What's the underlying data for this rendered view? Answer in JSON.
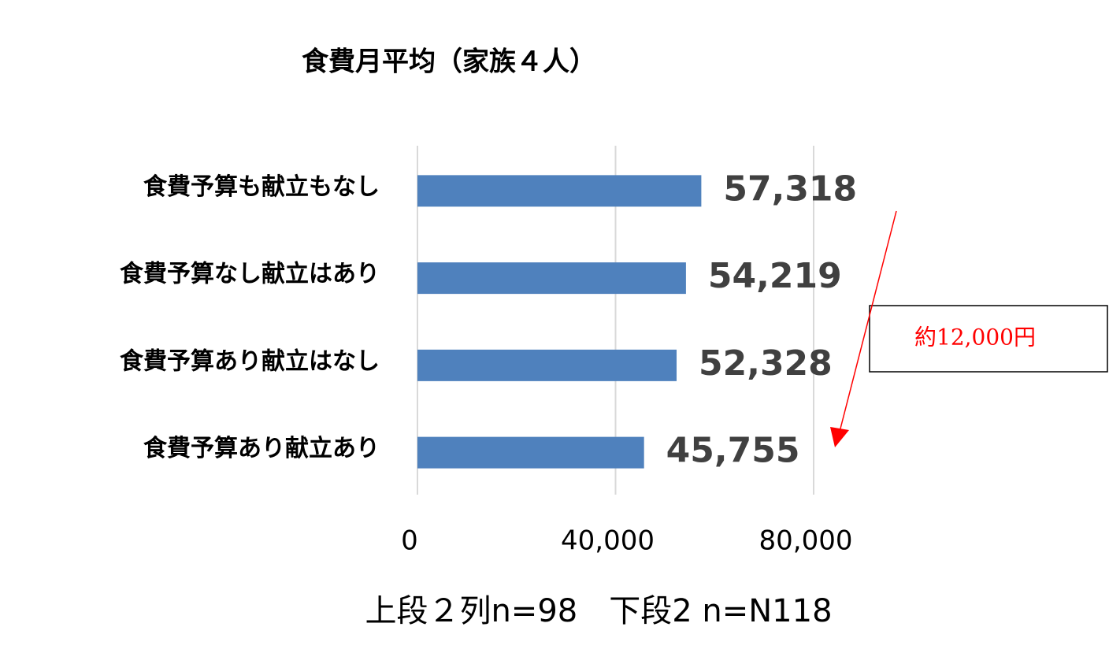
{
  "chart_data": {
    "type": "bar",
    "orientation": "horizontal",
    "title": "食費月平均（家族４人）",
    "categories": [
      "食費予算も献立もなし",
      "食費予算なし献立はあり",
      "食費予算あり献立はなし",
      "食費予算あり献立あり"
    ],
    "values": [
      57318,
      54219,
      52328,
      45755
    ],
    "value_labels": [
      "57,318",
      "54,219",
      "52,328",
      "45,755"
    ],
    "color": "#4f81bd",
    "xlim": [
      0,
      80000
    ],
    "xticks": [
      0,
      {
        "value": 40000,
        "label": "40,000"
      },
      {
        "value": 80000,
        "label": "80,000"
      }
    ],
    "grid": true,
    "annotations": [
      "約12,000円",
      "上段２列n=98　下段2 n=N118"
    ]
  }
}
